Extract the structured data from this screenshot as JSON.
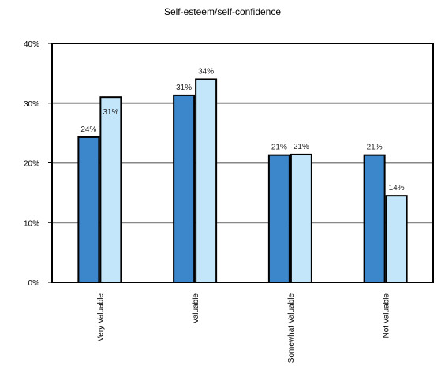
{
  "chart_data": {
    "type": "bar",
    "title": "Self-esteem/self-confidence",
    "xlabel": "",
    "ylabel": "",
    "ylim": [
      0,
      40
    ],
    "y_ticks": [
      "0%",
      "10%",
      "20%",
      "30%",
      "40%"
    ],
    "y_tick_values": [
      0,
      10,
      20,
      30,
      40
    ],
    "categories": [
      "Very Valuable",
      "Valuable",
      "Somewhat Valuable",
      "Not Valuable"
    ],
    "series": [
      {
        "values": [
          24.3,
          31.3,
          21.3,
          21.3
        ],
        "labels": [
          "24%",
          "31%",
          "21%",
          "21%"
        ],
        "color": "#3c87cb"
      },
      {
        "values": [
          31.0,
          34.0,
          21.4,
          14.5
        ],
        "labels": [
          "31%",
          "34%",
          "21%",
          "14%"
        ],
        "color": "#c4e6fa"
      }
    ],
    "grid": true,
    "legend": "none",
    "colors": {
      "axis": "#000000",
      "grid": "#888888",
      "background": "#ffffff"
    }
  }
}
